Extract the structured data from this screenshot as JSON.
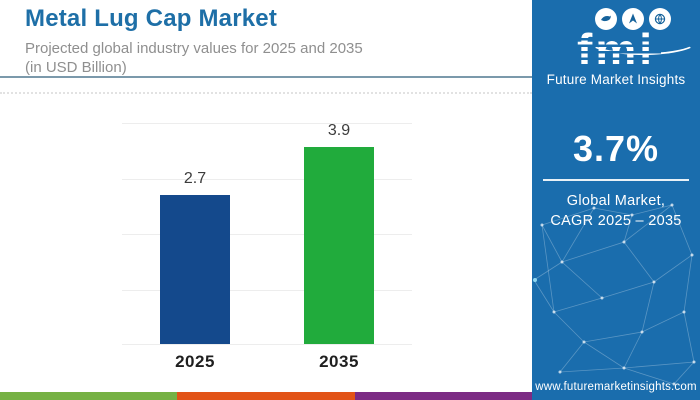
{
  "header": {
    "title": "Metal Lug Cap Market",
    "subtitle_line1": "Projected global industry values for 2025 and 2035",
    "subtitle_line2": "(in USD Billion)"
  },
  "chart_data": {
    "type": "bar",
    "categories": [
      "2025",
      "2035"
    ],
    "values": [
      2.7,
      3.9
    ],
    "value_labels": [
      "2.7",
      "3.9"
    ],
    "series": [
      {
        "name": "Global industry value (USD Billion)",
        "values": [
          2.7,
          3.9
        ]
      }
    ],
    "title": "Metal Lug Cap Market",
    "xlabel": "",
    "ylabel": "",
    "unit": "USD Billion",
    "ylim": [
      0,
      4
    ],
    "grid": "horizontal",
    "legend": "none",
    "bar_colors": [
      "#14498c",
      "#21ab3c"
    ]
  },
  "brand_panel": {
    "background": "#1a6dad",
    "logo_text": "fmi",
    "logo_caption": "Future Market Insights",
    "logo_circle_icons": [
      "whale-icon",
      "compass-icon",
      "globe-icon"
    ],
    "cagr_value": "3.7%",
    "cagr_caption_line1": "Global Market,",
    "cagr_caption_line2": "CAGR 2025 – 2035",
    "website": "www.futuremarketinsights.com"
  },
  "footer_stripe_colors": [
    "#76b144",
    "#e25317",
    "#7c2b84"
  ],
  "accent_colors": {
    "title_blue": "#1e6fa7",
    "subtitle_gray": "#8f8f8f",
    "header_rule": "#7b99ab",
    "gridline": "#ededed"
  }
}
